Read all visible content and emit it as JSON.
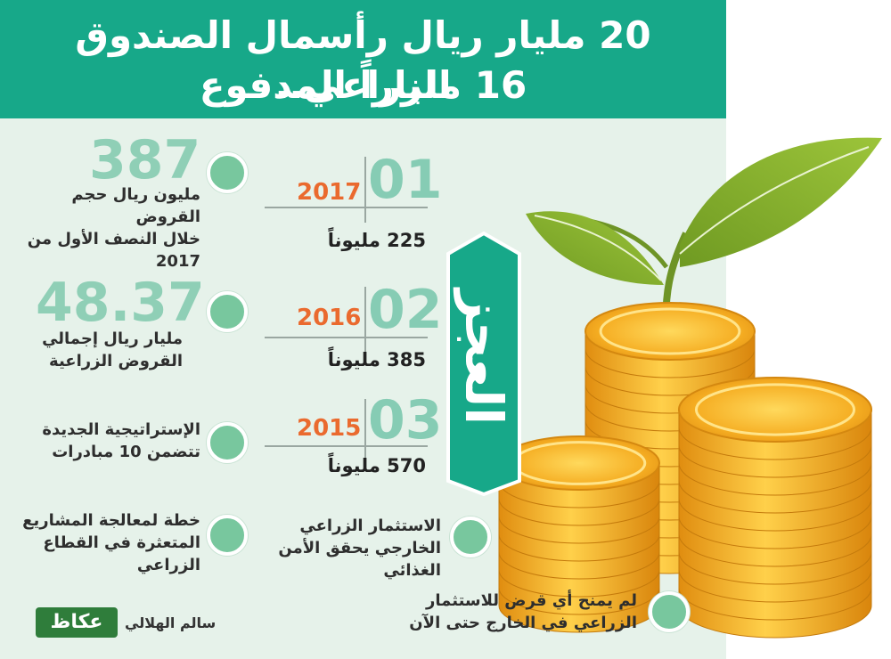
{
  "title": {
    "line1": "20 مليار ريال رأسمال الصندوق الزراعي..",
    "line2": "16 ملياراً المدفوع"
  },
  "stats": [
    {
      "number": "387",
      "lines": [
        "مليون ريال حجم القروض",
        "خلال النصف الأول من 2017"
      ]
    },
    {
      "number": "48.37",
      "lines": [
        "مليار ريال إجمالي",
        "القروض الزراعية"
      ]
    },
    {
      "lines": [
        "الإستراتيجية الجديدة",
        "تتضمن 10 مبادرات"
      ]
    },
    {
      "lines": [
        "خطة لمعالجة المشاريع",
        "المتعثرة في القطاع",
        "الزراعي"
      ]
    }
  ],
  "deficit": {
    "label": "العجز",
    "rows": [
      {
        "index": "01",
        "year": "2017",
        "amount": "225 مليوناً"
      },
      {
        "index": "02",
        "year": "2016",
        "amount": "385 مليوناً"
      },
      {
        "index": "03",
        "year": "2015",
        "amount": "570 مليوناً"
      }
    ]
  },
  "right_notes": [
    {
      "lines": [
        "الاستثمار الزراعي",
        "الخارجي يحقق الأمن",
        "الغذائي"
      ]
    },
    {
      "lines": [
        "لم يمنح أي قرض للاستثمار",
        "الزراعي في الخارج حتى الآن"
      ]
    }
  ],
  "author": "سالم الهلالي",
  "logo": "عكاظ",
  "colors": {
    "title_bg": "#17a889",
    "panel_bg": "#e6f2ea",
    "accent_number": "#8fcfb6",
    "year": "#ea6a2e",
    "bullet": "#78c79e",
    "coin": "#f2a81d"
  }
}
